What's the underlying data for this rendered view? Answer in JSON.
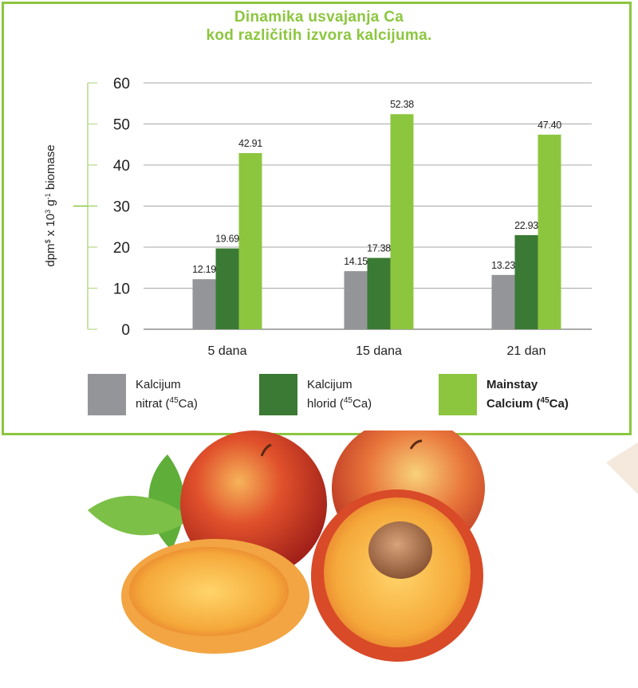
{
  "title_line1": "Dinamika usvajanja Ca",
  "title_line2": "kod različitih izvora kalcijuma.",
  "colors": {
    "frame": "#8cc63f",
    "kalcijum_nitrat": "#939598",
    "kalcijum_hlorid": "#3a7a34",
    "mainstay_calcium": "#8cc63f"
  },
  "legend": {
    "nitrat": {
      "line1": "Kalcijum",
      "line2_pre": "nitrat (",
      "sup": "45",
      "line2_post": "Ca)"
    },
    "hlorid": {
      "line1": "Kalcijum",
      "line2_pre": "hlorid (",
      "sup": "45",
      "line2_post": "Ca)"
    },
    "mainstay": {
      "line1": "Mainstay",
      "line2_pre": "Calcium (",
      "sup": "45",
      "line2_post": "Ca)"
    }
  },
  "chart_data": {
    "type": "bar",
    "ylabel": "dpm$ x 10^3 g^-1 biomase",
    "ylim": [
      0,
      60
    ],
    "yticks": [
      "0",
      "10",
      "20",
      "30",
      "40",
      "50",
      "60"
    ],
    "grid": true,
    "legend_position": "bottom",
    "categories": [
      "5 dana",
      "15 dana",
      "21 dan"
    ],
    "series": [
      {
        "name": "Kalcijum nitrat (45Ca)",
        "values": [
          12.19,
          14.15,
          13.23
        ],
        "labels": [
          "12.19",
          "14.15",
          "13.23"
        ]
      },
      {
        "name": "Kalcijum hlorid (45Ca)",
        "values": [
          19.69,
          17.38,
          22.93
        ],
        "labels": [
          "19.69",
          "17.38",
          "22.93"
        ]
      },
      {
        "name": "Mainstay Calcium (45Ca)",
        "values": [
          42.91,
          52.38,
          47.4
        ],
        "labels": [
          "42.91",
          "52.38",
          "47.40"
        ]
      }
    ]
  }
}
